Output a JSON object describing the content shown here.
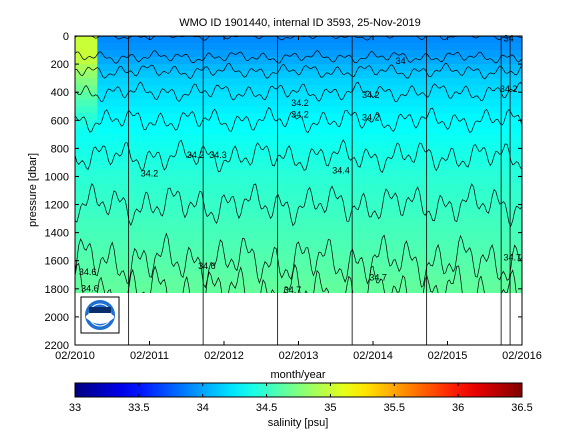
{
  "chart_data": {
    "type": "heatmap",
    "title": "WMO ID 1901440, internal ID 3593, 25-Nov-2019",
    "xlabel": "month/year",
    "ylabel": "pressure [dbar]",
    "x_tick_labels": [
      "02/2010",
      "02/2011",
      "02/2012",
      "02/2013",
      "02/2014",
      "02/2015",
      "02/2016"
    ],
    "x_tick_values": [
      2010.08,
      2011.08,
      2012.08,
      2013.08,
      2014.08,
      2015.08,
      2016.08
    ],
    "xlim": [
      2010.08,
      2016.08
    ],
    "y_ticks": [
      0,
      200,
      400,
      600,
      800,
      1000,
      1200,
      1400,
      1600,
      1800,
      2000,
      2200
    ],
    "ylim": [
      0,
      2200
    ],
    "y_reversed": true,
    "data_max_pressure": 1830,
    "colorbar": {
      "label": "salinity [psu]",
      "ticks": [
        33,
        33.5,
        34,
        34.5,
        35,
        35.5,
        36,
        36.5
      ],
      "range": [
        33,
        36.5
      ],
      "colormap": "jet"
    },
    "salinity_profile": {
      "pressure": [
        0,
        100,
        200,
        300,
        400,
        600,
        800,
        1000,
        1200,
        1400,
        1600,
        1800
      ],
      "salinity": [
        33.9,
        33.95,
        34.05,
        34.15,
        34.2,
        34.3,
        34.38,
        34.45,
        34.5,
        34.55,
        34.6,
        34.65
      ]
    },
    "high_salinity_feature": {
      "time_range": [
        2010.1,
        2010.4
      ],
      "max_pressure": 700,
      "salinity": 35.0
    },
    "profile_gap_dates": [
      2010.8,
      2011.8,
      2012.8,
      2013.8,
      2014.8,
      2015.8,
      2015.92
    ],
    "contour_levels": [
      33.9,
      34.0,
      34.1,
      34.2,
      34.3,
      34.4,
      34.5,
      34.6,
      34.7
    ],
    "contour_labels": [
      {
        "text": "34.2",
        "t": 2011.7,
        "p": 870
      },
      {
        "text": "34.2",
        "t": 2011.08,
        "p": 1000
      },
      {
        "text": "34.3",
        "t": 2012.0,
        "p": 870
      },
      {
        "text": "34.2",
        "t": 2013.1,
        "p": 500
      },
      {
        "text": "34.2",
        "t": 2013.1,
        "p": 580
      },
      {
        "text": "34.4",
        "t": 2013.65,
        "p": 980
      },
      {
        "text": "34.2",
        "t": 2014.05,
        "p": 440
      },
      {
        "text": "34.2",
        "t": 2014.05,
        "p": 600
      },
      {
        "text": "34",
        "t": 2014.45,
        "p": 200
      },
      {
        "text": "34.2",
        "t": 2015.9,
        "p": 400
      },
      {
        "text": "34",
        "t": 2015.9,
        "p": 40
      },
      {
        "text": "34.6",
        "t": 2010.25,
        "p": 1700
      },
      {
        "text": "34.6",
        "t": 2011.85,
        "p": 1660
      },
      {
        "text": "34.6",
        "t": 2010.28,
        "p": 1820
      },
      {
        "text": "34.7",
        "t": 2013.0,
        "p": 1830
      },
      {
        "text": "34.7",
        "t": 2014.15,
        "p": 1740
      },
      {
        "text": "34.7",
        "t": 2015.95,
        "p": 1600
      }
    ],
    "logo": "noaa-logo"
  }
}
